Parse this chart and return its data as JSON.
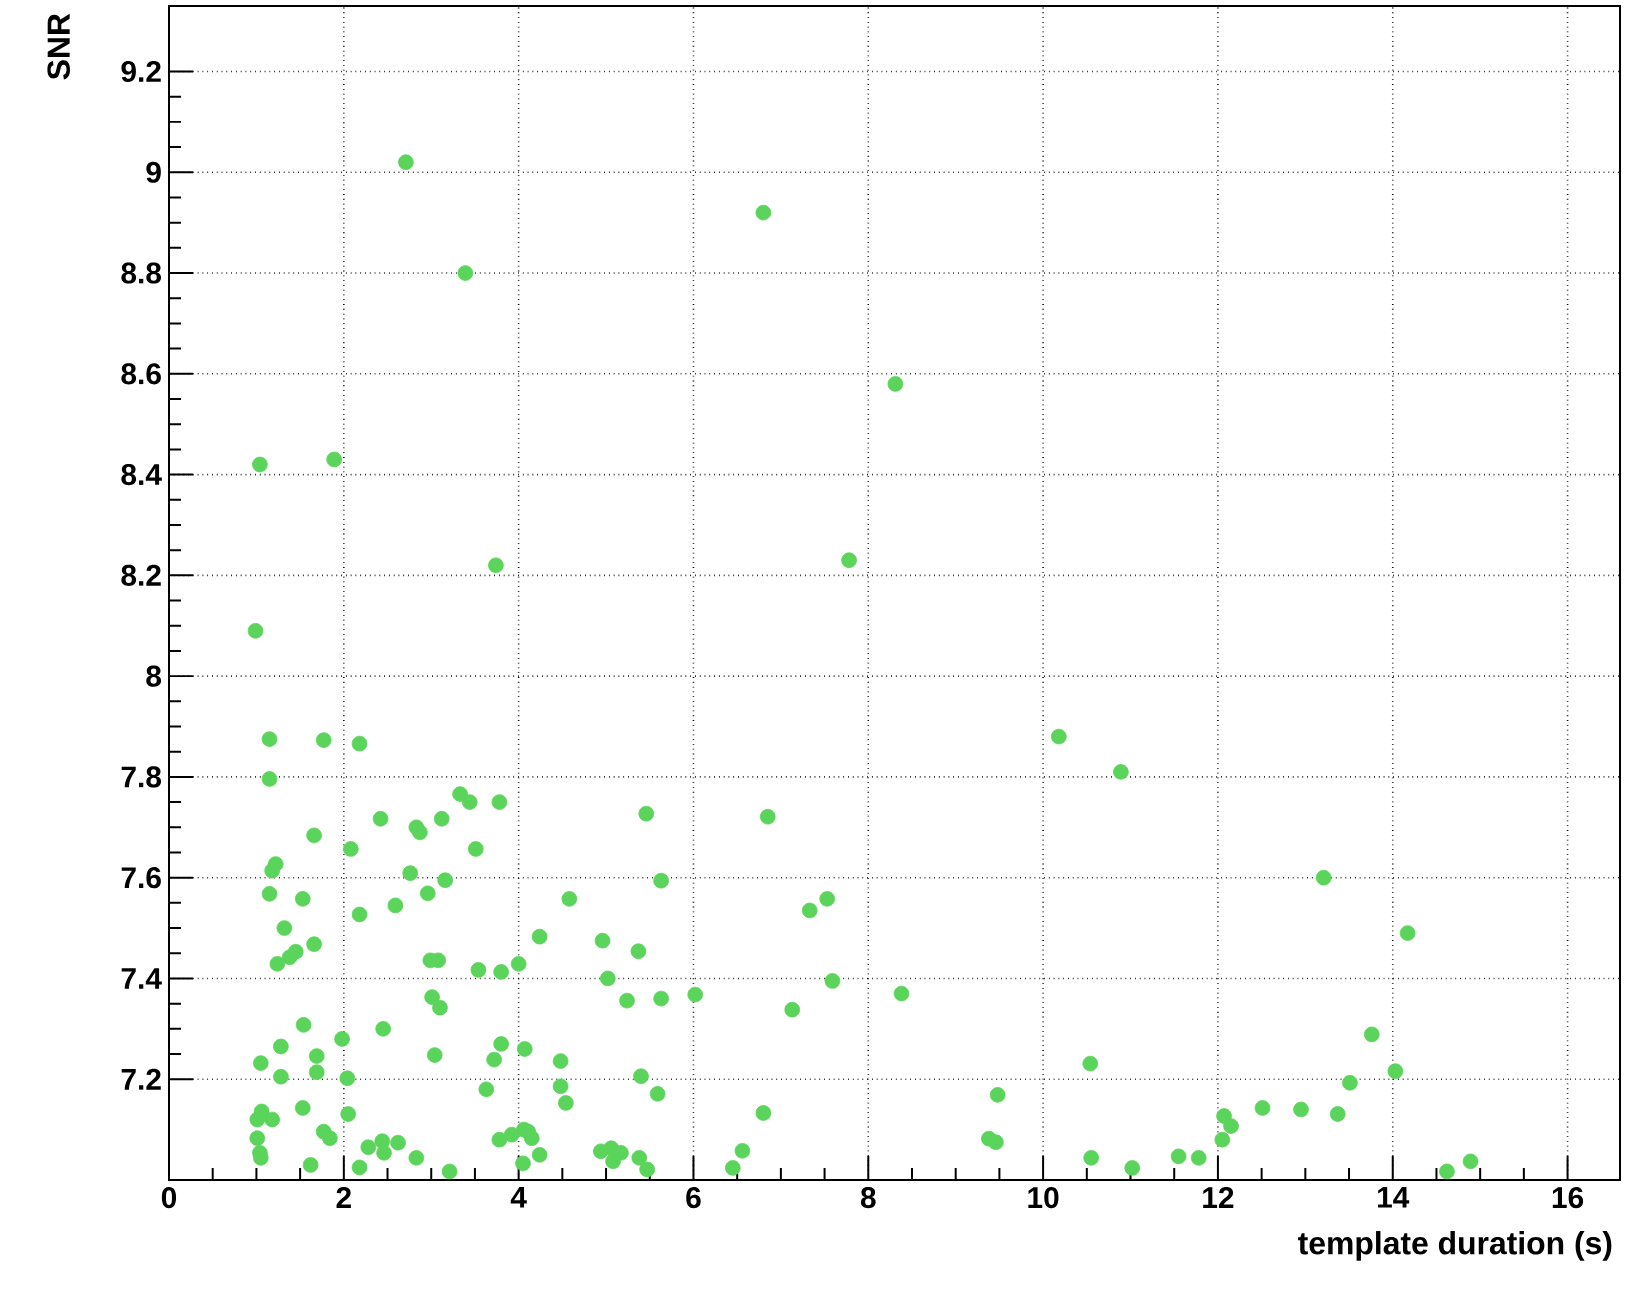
{
  "chart_data": {
    "type": "scatter",
    "xlabel": "template duration (s)",
    "ylabel": "SNR",
    "xlim": [
      0,
      16.6
    ],
    "ylim": [
      7.0,
      9.33
    ],
    "xticks": [
      0,
      2,
      4,
      6,
      8,
      10,
      12,
      14,
      16
    ],
    "yticks": [
      7.2,
      7.4,
      7.6,
      7.8,
      8,
      8.2,
      8.4,
      8.6,
      8.8,
      9,
      9.2
    ],
    "grid": true,
    "marker": "circle",
    "series": [
      {
        "color": "#5ad45a",
        "x": [
          2.71,
          3.39,
          6.8,
          8.31,
          1.04,
          1.89,
          3.74,
          7.78,
          0.99,
          10.18,
          10.89,
          13.21,
          14.17,
          1.15,
          1.77,
          2.18,
          1.15,
          3.33,
          3.44,
          3.78,
          2.42,
          2.83,
          2.87,
          3.12,
          1.66,
          2.08,
          3.51,
          1.22,
          1.18,
          2.76,
          3.16,
          1.15,
          1.53,
          2.96,
          2.18,
          2.59,
          1.32,
          1.66,
          1.45,
          1.38,
          1.24,
          2.99,
          3.08,
          3.54,
          3.8,
          4.0,
          3.01,
          3.1,
          1.54,
          2.45,
          1.28,
          1.98,
          3.8,
          3.72,
          1.05,
          1.69,
          1.69,
          1.28,
          2.04,
          3.04,
          4.07,
          3.63,
          1.53,
          2.05,
          1.06,
          1.01,
          1.18,
          1.01,
          1.04,
          1.05,
          1.77,
          1.84,
          1.62,
          2.18,
          2.28,
          2.44,
          2.46,
          2.62,
          2.83,
          3.21,
          3.78,
          3.92,
          4.06,
          4.05,
          5.46,
          6.85,
          5.63,
          4.58,
          7.53,
          7.33,
          4.24,
          4.96,
          5.37,
          5.02,
          5.24,
          5.63,
          6.02,
          7.59,
          7.13,
          4.48,
          4.48,
          4.54,
          5.4,
          5.59,
          6.8,
          4.11,
          4.15,
          4.24,
          4.94,
          5.06,
          5.08,
          5.17,
          5.38,
          5.47,
          6.56,
          6.45,
          8.38,
          10.54,
          13.76,
          14.03,
          9.48,
          13.51,
          9.38,
          9.46,
          10.55,
          11.02,
          11.55,
          11.78,
          12.05,
          12.07,
          12.15,
          12.51,
          12.95,
          13.37,
          14.62,
          14.89
        ],
        "values": [
          9.02,
          8.8,
          8.92,
          8.58,
          8.42,
          8.43,
          8.22,
          8.23,
          8.09,
          7.88,
          7.81,
          7.6,
          7.49,
          7.875,
          7.873,
          7.866,
          7.796,
          7.766,
          7.75,
          7.75,
          7.717,
          7.7,
          7.69,
          7.717,
          7.684,
          7.657,
          7.657,
          7.627,
          7.614,
          7.609,
          7.595,
          7.568,
          7.558,
          7.569,
          7.527,
          7.545,
          7.5,
          7.468,
          7.453,
          7.442,
          7.429,
          7.436,
          7.436,
          7.417,
          7.413,
          7.429,
          7.363,
          7.342,
          7.308,
          7.3,
          7.265,
          7.28,
          7.27,
          7.239,
          7.232,
          7.246,
          7.214,
          7.205,
          7.202,
          7.248,
          7.26,
          7.18,
          7.143,
          7.131,
          7.136,
          7.12,
          7.12,
          7.083,
          7.054,
          7.044,
          7.096,
          7.083,
          7.03,
          7.025,
          7.065,
          7.077,
          7.054,
          7.074,
          7.044,
          7.017,
          7.08,
          7.09,
          7.1,
          7.033,
          7.727,
          7.721,
          7.594,
          7.558,
          7.558,
          7.535,
          7.483,
          7.475,
          7.454,
          7.4,
          7.356,
          7.36,
          7.368,
          7.395,
          7.338,
          7.236,
          7.186,
          7.153,
          7.206,
          7.171,
          7.133,
          7.096,
          7.083,
          7.05,
          7.057,
          7.063,
          7.037,
          7.054,
          7.044,
          7.021,
          7.058,
          7.024,
          7.37,
          7.231,
          7.289,
          7.216,
          7.169,
          7.193,
          7.082,
          7.075,
          7.044,
          7.024,
          7.047,
          7.044,
          7.08,
          7.127,
          7.107,
          7.143,
          7.14,
          7.131,
          7.017,
          7.037
        ]
      }
    ]
  }
}
